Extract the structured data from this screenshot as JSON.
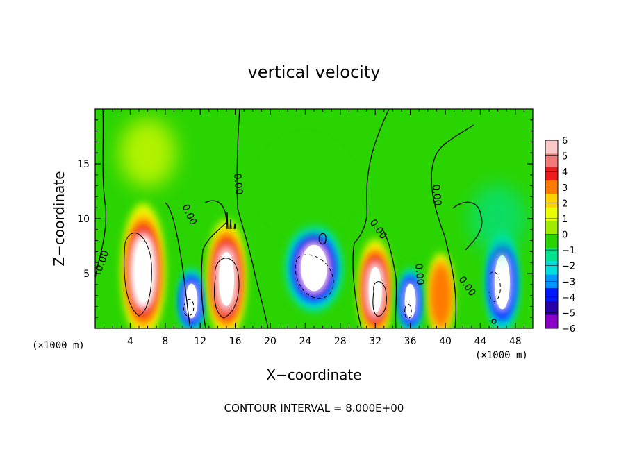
{
  "chart_data": {
    "type": "heatmap",
    "title": "vertical velocity",
    "xlabel": "X−coordinate",
    "ylabel": "Z−coordinate",
    "x_unit_label_left": "(×1000 m)",
    "x_unit_label_right": "(×1000 m)",
    "note": "CONTOUR INTERVAL = 8.000E+00",
    "xlim": [
      0,
      50
    ],
    "ylim": [
      0,
      20
    ],
    "xticks": [
      4,
      8,
      12,
      16,
      20,
      24,
      28,
      32,
      36,
      40,
      44,
      48
    ],
    "yticks": [
      5,
      10,
      15
    ],
    "colorbar": {
      "ticks": [
        6,
        5,
        4,
        3,
        2,
        1,
        0,
        -1,
        -2,
        -3,
        -4,
        -5,
        -6
      ],
      "tick_labels": [
        "6",
        "5",
        "4",
        "3",
        "2",
        "1",
        "0",
        "−1",
        "−2",
        "−3",
        "−4",
        "−5",
        "−6"
      ],
      "colors": [
        "#fbc8c8",
        "#f47a7a",
        "#ee1c1c",
        "#ff7a00",
        "#ffd000",
        "#eaff00",
        "#9fea00",
        "#2ad400",
        "#00e28c",
        "#00dede",
        "#0096ff",
        "#0018ff",
        "#2a00aa",
        "#8a00c8"
      ]
    },
    "contour_labels": [
      "0.00",
      "0.00",
      "0.00",
      "0.00",
      "0.00",
      "0.00",
      "0.00"
    ],
    "features": [
      {
        "x": 5.5,
        "z": 5.2,
        "w": 2.5,
        "h": 7.5,
        "value": 6
      },
      {
        "x": 11,
        "z": 2.5,
        "w": 1.6,
        "h": 4.0,
        "value": -5
      },
      {
        "x": 15,
        "z": 4.5,
        "w": 2.2,
        "h": 6.5,
        "value": 5
      },
      {
        "x": 25,
        "z": 5.5,
        "w": 4.2,
        "h": 5.5,
        "value": -6
      },
      {
        "x": 32,
        "z": 3.5,
        "w": 1.8,
        "h": 5.5,
        "value": 5
      },
      {
        "x": 36,
        "z": 2.5,
        "w": 1.4,
        "h": 4.0,
        "value": -5
      },
      {
        "x": 39.5,
        "z": 3.0,
        "w": 1.2,
        "h": 4.5,
        "value": 3
      },
      {
        "x": 46.5,
        "z": 4.2,
        "w": 2.2,
        "h": 6.5,
        "value": -5
      },
      {
        "x": 6,
        "z": 16,
        "w": 4,
        "h": 4,
        "value": 1
      },
      {
        "x": 24,
        "z": 13,
        "w": 6,
        "h": 5,
        "value": -1
      },
      {
        "x": 46,
        "z": 10,
        "w": 4,
        "h": 4,
        "value": -2
      }
    ]
  }
}
